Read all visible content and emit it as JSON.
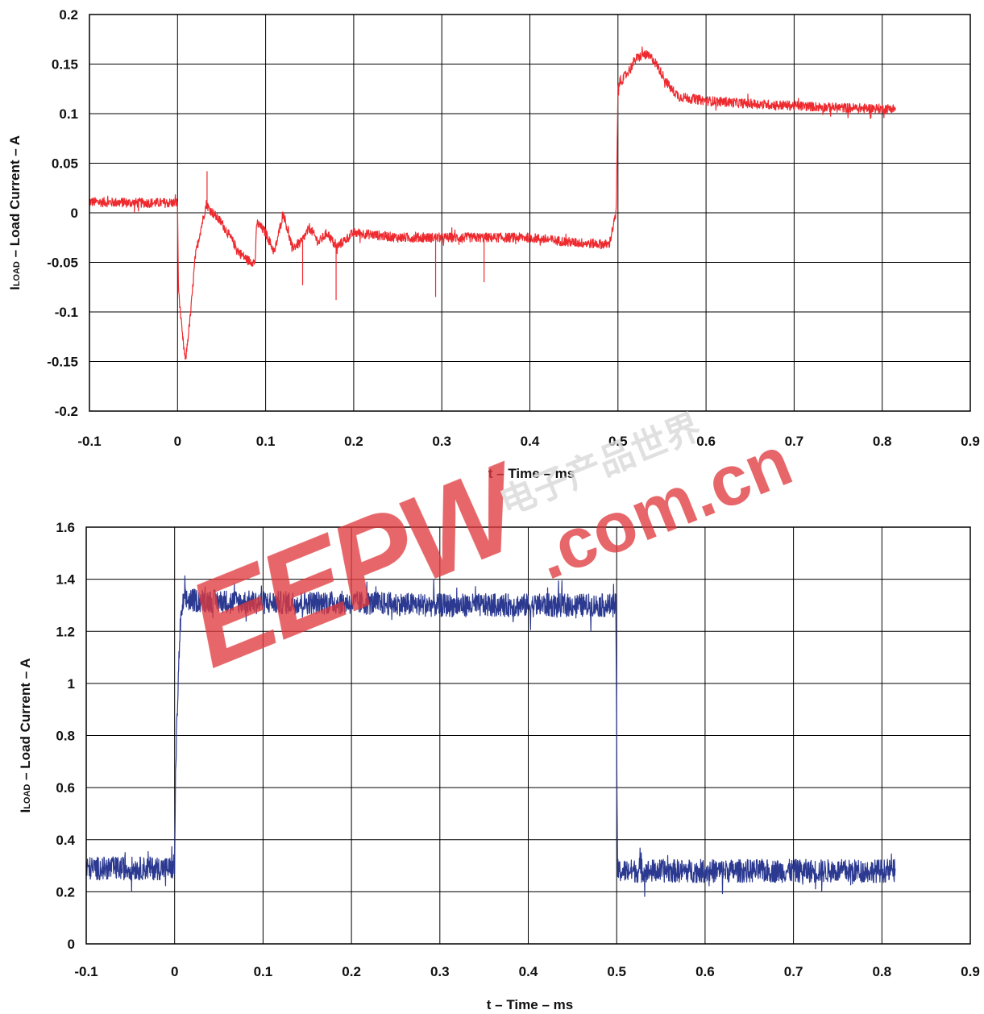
{
  "chart_data": [
    {
      "type": "line",
      "title": "",
      "xlabel": "t – Time – ms",
      "ylabel_main": "I",
      "ylabel_sub": "LOAD",
      "ylabel_rest": " – Load Current – A",
      "xlim": [
        -0.1,
        0.9
      ],
      "ylim": [
        -0.2,
        0.2
      ],
      "x_ticks": [
        -0.1,
        0,
        0.1,
        0.2,
        0.3,
        0.4,
        0.5,
        0.6,
        0.7,
        0.8,
        0.9
      ],
      "x_tick_labels": [
        "-0.1",
        "0",
        "0.1",
        "0.2",
        "0.3",
        "0.4",
        "0.5",
        "0.6",
        "0.7",
        "0.8",
        "0.9"
      ],
      "y_ticks": [
        -0.2,
        -0.15,
        -0.1,
        -0.05,
        0,
        0.05,
        0.1,
        0.15,
        0.2
      ],
      "y_tick_labels": [
        "-0.2",
        "-0.15",
        "-0.1",
        "-0.05",
        "0",
        "0.05",
        "0.1",
        "0.15",
        "0.2"
      ],
      "grid": true,
      "series": [
        {
          "color": "#ee2a2f",
          "x": [
            -0.1,
            -0.05,
            0.0,
            0.001,
            0.005,
            0.009,
            0.015,
            0.02,
            0.025,
            0.033,
            0.035,
            0.04,
            0.05,
            0.06,
            0.07,
            0.08,
            0.088,
            0.09,
            0.1,
            0.11,
            0.12,
            0.13,
            0.14,
            0.15,
            0.16,
            0.17,
            0.18,
            0.2,
            0.25,
            0.3,
            0.35,
            0.4,
            0.45,
            0.49,
            0.498,
            0.5,
            0.501,
            0.51,
            0.52,
            0.53,
            0.54,
            0.55,
            0.56,
            0.57,
            0.6,
            0.65,
            0.7,
            0.75,
            0.8,
            0.815
          ],
          "y": [
            0.011,
            0.01,
            0.01,
            -0.075,
            -0.12,
            -0.15,
            -0.1,
            -0.045,
            -0.022,
            0.01,
            0.005,
            0.0,
            -0.01,
            -0.025,
            -0.04,
            -0.048,
            -0.05,
            -0.01,
            -0.02,
            -0.04,
            0.0,
            -0.035,
            -0.03,
            -0.015,
            -0.03,
            -0.02,
            -0.035,
            -0.02,
            -0.025,
            -0.025,
            -0.025,
            -0.025,
            -0.03,
            -0.032,
            0.0,
            0.12,
            0.13,
            0.14,
            0.155,
            0.16,
            0.155,
            0.14,
            0.125,
            0.117,
            0.113,
            0.11,
            0.108,
            0.106,
            0.105,
            0.105
          ]
        }
      ],
      "spikes": [
        {
          "x": 0.0335,
          "y": 0.042
        },
        {
          "x": 0.142,
          "y": -0.073
        },
        {
          "x": 0.18,
          "y": -0.088
        },
        {
          "x": 0.293,
          "y": -0.085
        },
        {
          "x": 0.348,
          "y": -0.07
        }
      ]
    },
    {
      "type": "line",
      "title": "",
      "xlabel": "t  – Time – ms",
      "ylabel_main": "I",
      "ylabel_sub": "LOAD",
      "ylabel_rest": " – Load Current – A",
      "xlim": [
        -0.1,
        0.9
      ],
      "ylim": [
        0,
        1.6
      ],
      "x_ticks": [
        -0.1,
        0,
        0.1,
        0.2,
        0.3,
        0.4,
        0.5,
        0.6,
        0.7,
        0.8,
        0.9
      ],
      "x_tick_labels": [
        "-0.1",
        "0",
        "0.1",
        "0.2",
        "0.3",
        "0.4",
        "0.5",
        "0.6",
        "0.7",
        "0.8",
        "0.9"
      ],
      "y_ticks": [
        0,
        0.2,
        0.4,
        0.6,
        0.8,
        1,
        1.2,
        1.4,
        1.6
      ],
      "y_tick_labels": [
        "0",
        "0.2",
        "0.4",
        "0.6",
        "0.8",
        "1",
        "1.2",
        "1.4",
        "1.6"
      ],
      "grid": true,
      "series": [
        {
          "color": "#2b3990",
          "x": [
            -0.1,
            -0.05,
            0.0,
            0.001,
            0.003,
            0.006,
            0.01,
            0.1,
            0.2,
            0.3,
            0.4,
            0.499,
            0.5,
            0.501,
            0.6,
            0.7,
            0.8,
            0.815
          ],
          "y": [
            0.29,
            0.29,
            0.29,
            0.65,
            0.9,
            1.2,
            1.32,
            1.31,
            1.31,
            1.3,
            1.3,
            1.3,
            0.8,
            0.28,
            0.28,
            0.28,
            0.28,
            0.28
          ]
        }
      ]
    }
  ],
  "watermark": {
    "brand": "EEPW",
    "domain": ".com.cn",
    "chinese": "电子产品世界"
  }
}
